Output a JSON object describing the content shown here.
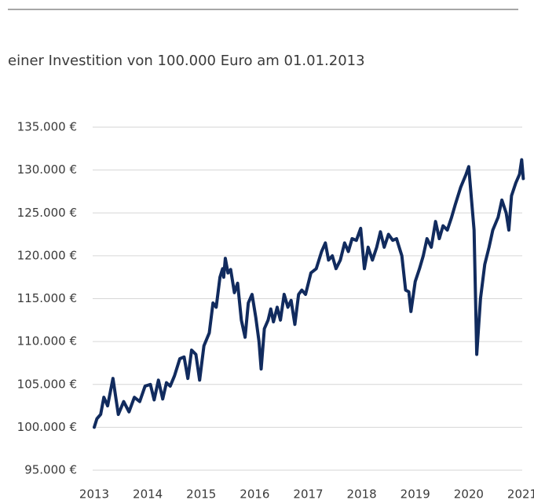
{
  "chart_data": {
    "type": "line",
    "subtitle": "einer Investition von 100.000 Euro am 01.01.2013",
    "color": "#112b5e",
    "x": [
      2013.0,
      2013.05,
      2013.12,
      2013.18,
      2013.25,
      2013.35,
      2013.45,
      2013.55,
      2013.65,
      2013.75,
      2013.85,
      2013.95,
      2014.05,
      2014.12,
      2014.2,
      2014.28,
      2014.35,
      2014.42,
      2014.5,
      2014.6,
      2014.68,
      2014.75,
      2014.82,
      2014.9,
      2014.97,
      2015.05,
      2015.15,
      2015.22,
      2015.28,
      2015.35,
      2015.4,
      2015.42,
      2015.45,
      2015.5,
      2015.55,
      2015.62,
      2015.68,
      2015.75,
      2015.82,
      2015.88,
      2015.95,
      2016.02,
      2016.08,
      2016.12,
      2016.18,
      2016.25,
      2016.3,
      2016.35,
      2016.42,
      2016.48,
      2016.55,
      2016.62,
      2016.68,
      2016.75,
      2016.82,
      2016.88,
      2016.95,
      2017.05,
      2017.15,
      2017.25,
      2017.32,
      2017.38,
      2017.45,
      2017.52,
      2017.6,
      2017.68,
      2017.75,
      2017.82,
      2017.9,
      2017.98,
      2018.05,
      2018.12,
      2018.2,
      2018.28,
      2018.35,
      2018.42,
      2018.5,
      2018.58,
      2018.65,
      2018.75,
      2018.82,
      2018.88,
      2018.92,
      2019.0,
      2019.08,
      2019.15,
      2019.22,
      2019.3,
      2019.38,
      2019.45,
      2019.52,
      2019.6,
      2019.68,
      2019.75,
      2019.85,
      2019.95,
      2020.0,
      2020.1,
      2020.15,
      2020.22,
      2020.3,
      2020.38,
      2020.45,
      2020.55,
      2020.62,
      2020.7,
      2020.75,
      2020.8,
      2020.88,
      2020.95,
      2020.99,
      2021.02
    ],
    "values": [
      100000,
      101000,
      101500,
      103500,
      102500,
      105700,
      101500,
      103000,
      101800,
      103500,
      103000,
      104800,
      105000,
      103200,
      105500,
      103300,
      105200,
      104800,
      106000,
      108000,
      108200,
      105700,
      109000,
      108500,
      105500,
      109500,
      111000,
      114500,
      114000,
      117500,
      118500,
      117500,
      119700,
      118000,
      118400,
      115700,
      116800,
      112500,
      110500,
      114500,
      115500,
      112800,
      110000,
      106800,
      111500,
      112500,
      113800,
      112300,
      114000,
      112500,
      115500,
      114000,
      114800,
      112000,
      115500,
      116000,
      115500,
      118000,
      118500,
      120500,
      121500,
      119500,
      120000,
      118500,
      119500,
      121500,
      120500,
      122000,
      121800,
      123200,
      118500,
      121000,
      119500,
      121000,
      122800,
      121000,
      122500,
      121800,
      122000,
      120000,
      116000,
      115800,
      113500,
      117000,
      118500,
      120000,
      122000,
      121000,
      124000,
      122000,
      123500,
      123000,
      124500,
      126000,
      128000,
      129500,
      130400,
      123000,
      108500,
      115000,
      119000,
      121000,
      123000,
      124500,
      126500,
      125000,
      123000,
      127000,
      128500,
      129500,
      131200,
      129000
    ],
    "xlim": [
      2013,
      2021
    ],
    "xticks": [
      2013,
      2014,
      2015,
      2016,
      2017,
      2018,
      2019,
      2020,
      2021
    ],
    "ylim": [
      95000,
      135000
    ],
    "yticks": [
      {
        "value": 95000,
        "label": "95.000 €"
      },
      {
        "value": 100000,
        "label": "100.000 €"
      },
      {
        "value": 105000,
        "label": "105.000 €"
      },
      {
        "value": 110000,
        "label": "110.000 €"
      },
      {
        "value": 115000,
        "label": "115.000 €"
      },
      {
        "value": 120000,
        "label": "120.000 €"
      },
      {
        "value": 125000,
        "label": "125.000 €"
      },
      {
        "value": 130000,
        "label": "130.000 €"
      },
      {
        "value": 135000,
        "label": "135.000 €"
      }
    ],
    "grid": true
  }
}
